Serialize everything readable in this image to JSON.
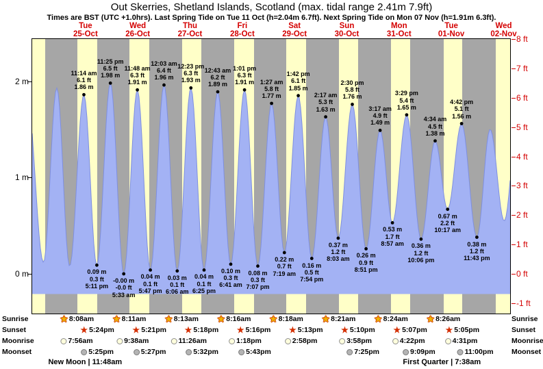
{
  "chart_data": {
    "type": "area",
    "title": "Out Skerries, Shetland Islands, Scotland (max. tidal range 2.41m 7.9ft)",
    "subtitle": "Times are BST (UTC +1.0hrs). Last Spring Tide on Tue 11 Oct (h=2.04m 6.7ft). Next Spring Tide on Mon 07 Nov (h=1.91m 6.3ft).",
    "day_headers": [
      {
        "name": "Tue",
        "date": "25-Oct"
      },
      {
        "name": "Wed",
        "date": "26-Oct"
      },
      {
        "name": "Thu",
        "date": "27-Oct"
      },
      {
        "name": "Fri",
        "date": "28-Oct"
      },
      {
        "name": "Sat",
        "date": "29-Oct"
      },
      {
        "name": "Sun",
        "date": "30-Oct"
      },
      {
        "name": "Mon",
        "date": "31-Oct"
      },
      {
        "name": "Tue",
        "date": "01-Nov"
      },
      {
        "name": "Wed",
        "date": "02-Nov"
      }
    ],
    "y_axis_left": {
      "unit": "m",
      "ticks": [
        {
          "label": "2 m",
          "value": 2
        },
        {
          "label": "1 m",
          "value": 1
        },
        {
          "label": "0 m",
          "value": 0
        }
      ]
    },
    "y_axis_right": {
      "unit": "ft",
      "ticks": [
        {
          "label": "8 ft",
          "value": 8
        },
        {
          "label": "7 ft",
          "value": 7
        },
        {
          "label": "6 ft",
          "value": 6
        },
        {
          "label": "5 ft",
          "value": 5
        },
        {
          "label": "4 ft",
          "value": 4
        },
        {
          "label": "3 ft",
          "value": 3
        },
        {
          "label": "2 ft",
          "value": 2
        },
        {
          "label": "1 ft",
          "value": 1
        },
        {
          "label": "0 ft",
          "value": 0
        },
        {
          "label": "-1 ft",
          "value": -1
        }
      ]
    },
    "domain_hours": [
      -12.5,
      207
    ],
    "floor_m": -0.21,
    "daylight_bands_hours": [
      [
        -12.5,
        -6.6
      ],
      [
        8.13,
        17.4
      ],
      [
        32.18,
        41.35
      ],
      [
        56.22,
        65.3
      ],
      [
        80.27,
        89.27
      ],
      [
        104.3,
        113.22
      ],
      [
        128.35,
        137.17
      ],
      [
        152.4,
        161.12
      ],
      [
        176.43,
        185.08
      ],
      [
        200.48,
        207
      ]
    ],
    "tide_events": [
      {
        "day": 0,
        "type": "high",
        "time": "11:14 am",
        "ft": "6.1 ft",
        "m": "1.86 m",
        "h": 1.86
      },
      {
        "day": 0,
        "type": "low",
        "time": "5:11 pm",
        "ft": "0.3 ft",
        "m": "0.09 m",
        "h": 0.09
      },
      {
        "day": 0,
        "type": "high",
        "time": "11:25 pm",
        "ft": "6.5 ft",
        "m": "1.98 m",
        "h": 1.98
      },
      {
        "day": 1,
        "type": "low",
        "time": "5:33 am",
        "ft": "-0.0 ft",
        "m": "-0.00 m",
        "h": -0.0
      },
      {
        "day": 1,
        "type": "high",
        "time": "11:48 am",
        "ft": "6.3 ft",
        "m": "1.91 m",
        "h": 1.91
      },
      {
        "day": 1,
        "type": "low",
        "time": "5:47 pm",
        "ft": "0.1 ft",
        "m": "0.04 m",
        "h": 0.04
      },
      {
        "day": 2,
        "type": "high",
        "time": "12:03 am",
        "ft": "6.4 ft",
        "m": "1.96 m",
        "h": 1.96
      },
      {
        "day": 2,
        "type": "low",
        "time": "6:06 am",
        "ft": "0.1 ft",
        "m": "0.03 m",
        "h": 0.03
      },
      {
        "day": 2,
        "type": "high",
        "time": "12:23 pm",
        "ft": "6.3 ft",
        "m": "1.93 m",
        "h": 1.93
      },
      {
        "day": 2,
        "type": "low",
        "time": "6:25 pm",
        "ft": "0.1 ft",
        "m": "0.04 m",
        "h": 0.04
      },
      {
        "day": 3,
        "type": "high",
        "time": "12:43 am",
        "ft": "6.2 ft",
        "m": "1.89 m",
        "h": 1.89
      },
      {
        "day": 3,
        "type": "low",
        "time": "6:41 am",
        "ft": "0.3 ft",
        "m": "0.10 m",
        "h": 0.1
      },
      {
        "day": 3,
        "type": "high",
        "time": "1:01 pm",
        "ft": "6.3 ft",
        "m": "1.91 m",
        "h": 1.91
      },
      {
        "day": 3,
        "type": "low",
        "time": "7:07 pm",
        "ft": "0.3 ft",
        "m": "0.08 m",
        "h": 0.08
      },
      {
        "day": 4,
        "type": "high",
        "time": "1:27 am",
        "ft": "5.8 ft",
        "m": "1.77 m",
        "h": 1.77
      },
      {
        "day": 4,
        "type": "low",
        "time": "7:19 am",
        "ft": "0.7 ft",
        "m": "0.22 m",
        "h": 0.22
      },
      {
        "day": 4,
        "type": "high",
        "time": "1:42 pm",
        "ft": "6.1 ft",
        "m": "1.85 m",
        "h": 1.85
      },
      {
        "day": 4,
        "type": "low",
        "time": "7:54 pm",
        "ft": "0.5 ft",
        "m": "0.16 m",
        "h": 0.16
      },
      {
        "day": 5,
        "type": "high",
        "time": "2:17 am",
        "ft": "5.3 ft",
        "m": "1.63 m",
        "h": 1.63
      },
      {
        "day": 5,
        "type": "low",
        "time": "8:03 am",
        "ft": "1.2 ft",
        "m": "0.37 m",
        "h": 0.37
      },
      {
        "day": 5,
        "type": "high",
        "time": "2:30 pm",
        "ft": "5.8 ft",
        "m": "1.76 m",
        "h": 1.76
      },
      {
        "day": 5,
        "type": "low",
        "time": "8:51 pm",
        "ft": "0.9 ft",
        "m": "0.26 m",
        "h": 0.26
      },
      {
        "day": 6,
        "type": "high",
        "time": "3:17 am",
        "ft": "4.9 ft",
        "m": "1.49 m",
        "h": 1.49
      },
      {
        "day": 6,
        "type": "low",
        "time": "8:57 am",
        "ft": "1.7 ft",
        "m": "0.53 m",
        "h": 0.53
      },
      {
        "day": 6,
        "type": "high",
        "time": "3:29 pm",
        "ft": "5.4 ft",
        "m": "1.65 m",
        "h": 1.65
      },
      {
        "day": 6,
        "type": "low",
        "time": "10:06 pm",
        "ft": "1.2 ft",
        "m": "0.36 m",
        "h": 0.36
      },
      {
        "day": 7,
        "type": "high",
        "time": "4:34 am",
        "ft": "4.5 ft",
        "m": "1.38 m",
        "h": 1.38
      },
      {
        "day": 7,
        "type": "low",
        "time": "10:17 am",
        "ft": "2.2 ft",
        "m": "0.67 m",
        "h": 0.67
      },
      {
        "day": 7,
        "type": "high",
        "time": "4:42 pm",
        "ft": "5.1 ft",
        "m": "1.56 m",
        "h": 1.56
      },
      {
        "day": 7,
        "type": "low",
        "time": "11:43 pm",
        "ft": "1.2 ft",
        "m": "0.38 m",
        "h": 0.38
      }
    ],
    "curve_padding": {
      "pre": [
        {
          "t": -14.9,
          "h": 1.85
        },
        {
          "t": -7.3,
          "h": 0.12
        },
        {
          "t": -1.2,
          "h": 1.93
        },
        {
          "t": 4.7,
          "h": 0.08
        }
      ],
      "post": [
        {
          "t": 197.8,
          "h": 1.5
        },
        {
          "t": 204.3,
          "h": 0.55
        },
        {
          "t": 210.5,
          "h": 1.6
        }
      ]
    },
    "astro_rows": [
      {
        "label": "Sunrise",
        "icon": "sunrise-star",
        "events": [
          {
            "day": 0,
            "time": "8:08am"
          },
          {
            "day": 1,
            "time": "8:11am"
          },
          {
            "day": 2,
            "time": "8:13am"
          },
          {
            "day": 3,
            "time": "8:16am"
          },
          {
            "day": 4,
            "time": "8:18am"
          },
          {
            "day": 5,
            "time": "8:21am"
          },
          {
            "day": 6,
            "time": "8:24am"
          },
          {
            "day": 7,
            "time": "8:26am"
          }
        ]
      },
      {
        "label": "Sunset",
        "icon": "sunset-star",
        "events": [
          {
            "day": 0,
            "time": "5:24pm"
          },
          {
            "day": 1,
            "time": "5:21pm"
          },
          {
            "day": 2,
            "time": "5:18pm"
          },
          {
            "day": 3,
            "time": "5:16pm"
          },
          {
            "day": 4,
            "time": "5:13pm"
          },
          {
            "day": 5,
            "time": "5:10pm"
          },
          {
            "day": 6,
            "time": "5:07pm"
          },
          {
            "day": 7,
            "time": "5:05pm"
          }
        ]
      },
      {
        "label": "Moonrise",
        "icon": "moonrise-circle",
        "events": [
          {
            "day": 0,
            "time": "7:56am"
          },
          {
            "day": 1,
            "time": "9:38am"
          },
          {
            "day": 2,
            "time": "11:26am"
          },
          {
            "day": 3,
            "time": "1:18pm"
          },
          {
            "day": 4,
            "time": "2:58pm"
          },
          {
            "day": 5,
            "time": "3:58pm"
          },
          {
            "day": 6,
            "time": "4:22pm"
          },
          {
            "day": 7,
            "time": "4:31pm"
          }
        ]
      },
      {
        "label": "Moonset",
        "icon": "moonset-circle",
        "events": [
          {
            "day": 0,
            "time": "5:25pm"
          },
          {
            "day": 1,
            "time": "5:27pm"
          },
          {
            "day": 2,
            "time": "5:32pm"
          },
          {
            "day": 3,
            "time": "5:43pm"
          },
          {
            "day": 5,
            "time": "7:25pm"
          },
          {
            "day": 6,
            "time": "9:09pm"
          },
          {
            "day": 7,
            "time": "11:00pm"
          }
        ]
      }
    ],
    "moon_phases": [
      {
        "name": "New Moon",
        "time": "11:48am",
        "day": 0
      },
      {
        "name": "First Quarter",
        "time": "7:38am",
        "day": 7
      }
    ],
    "colors": {
      "day_red": "#d40000",
      "plot_gray": "#a6a6a6",
      "daylight_yellow": "#ffffc8",
      "tide_blue": "#a3b2f4",
      "tide_edge": "#7e8fe0",
      "axis_right_red": "#d40000"
    }
  }
}
